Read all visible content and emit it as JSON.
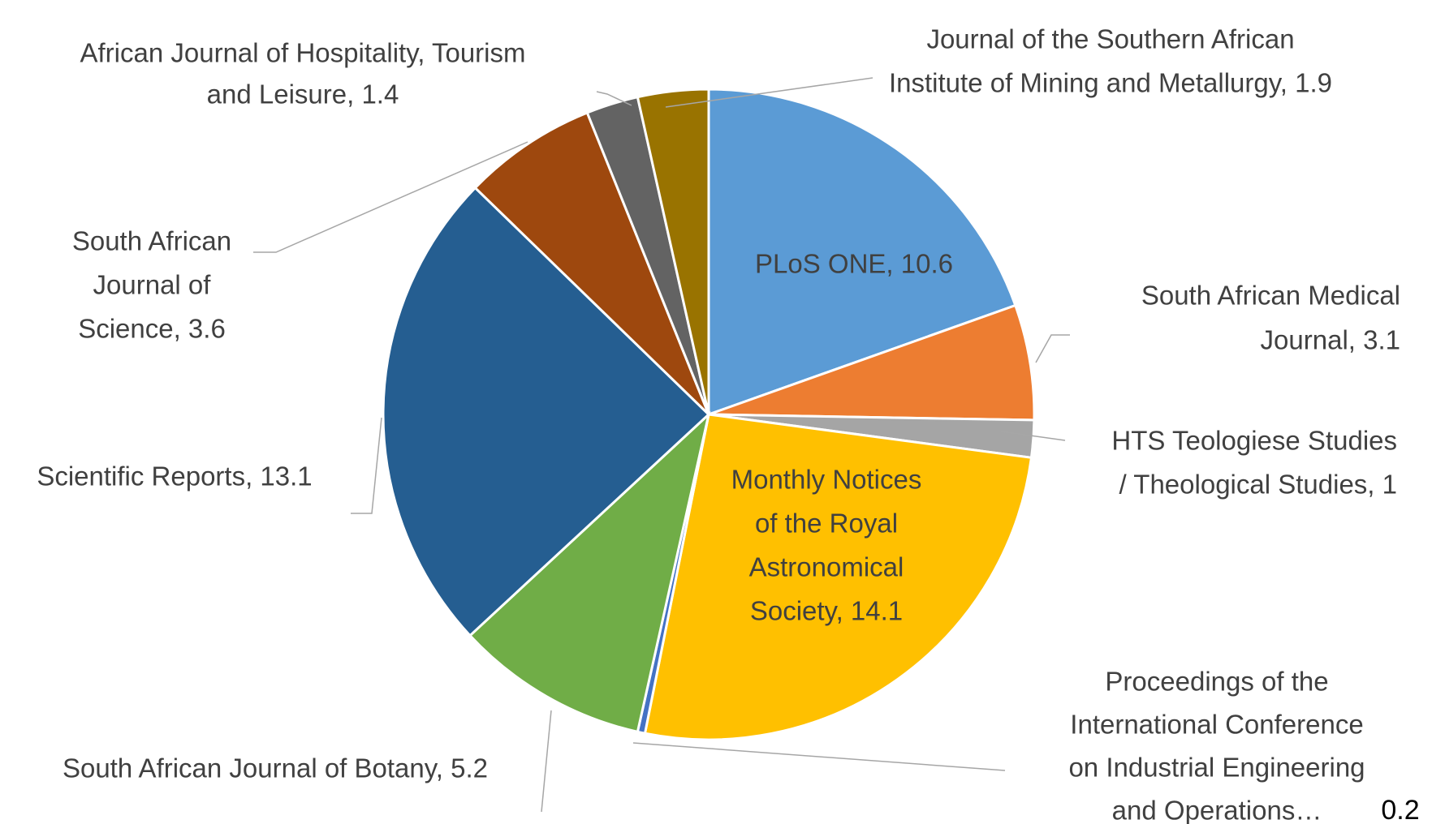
{
  "chart_data": {
    "type": "pie",
    "values": [
      10.6,
      3.1,
      1,
      14.1,
      0.2,
      5.2,
      13.1,
      3.6,
      1.4,
      1.9
    ],
    "labels": [
      [
        "PLoS ONE, 10.6"
      ],
      [
        "South African Medical",
        "Journal, 3.1"
      ],
      [
        "HTS Teologiese Studies",
        "/ Theological Studies, 1"
      ],
      [
        "Monthly Notices",
        "of the Royal",
        "Astronomical",
        "Society, 14.1"
      ],
      [
        "Proceedings of the",
        "International Conference",
        "on Industrial Engineering",
        "and Operations…"
      ],
      [
        "South African Journal of Botany, 5.2"
      ],
      [
        "Scientific Reports, 13.1"
      ],
      [
        "South African",
        "Journal of",
        "Science, 3.6"
      ],
      [
        "African Journal of Hospitality, Tourism",
        "and Leisure, 1.4"
      ],
      [
        "Journal of the Southern African",
        "Institute of Mining and Metallurgy, 1.9"
      ]
    ],
    "colors": [
      "#5b9bd5",
      "#ed7d31",
      "#a5a5a5",
      "#ffc000",
      "#4472c4",
      "#70ad47",
      "#255e91",
      "#9e480e",
      "#636363",
      "#997300"
    ]
  }
}
